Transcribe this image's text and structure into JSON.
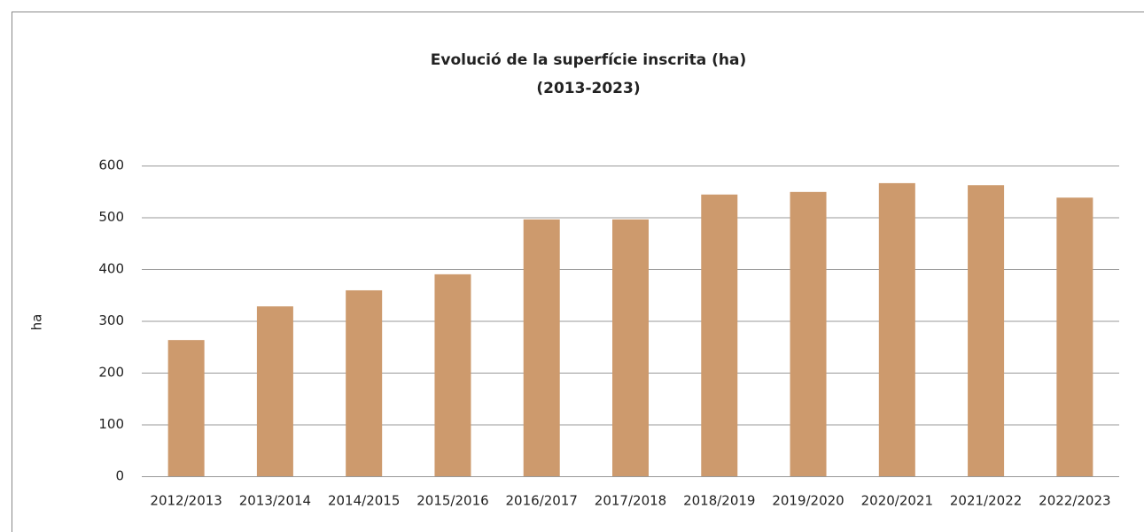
{
  "chart_data": {
    "type": "bar",
    "title": "Evolució de la superfície inscrita (ha)",
    "subtitle": "(2013-2023)",
    "y_label": "ha",
    "categories": [
      "2012/2013",
      "2013/2014",
      "2014/2015",
      "2015/2016",
      "2016/2017",
      "2017/2018",
      "2018/2019",
      "2019/2020",
      "2020/2021",
      "2021/2022",
      "2022/2023"
    ],
    "values": [
      263,
      328,
      359,
      390,
      496,
      496,
      544,
      549,
      566,
      562,
      538
    ],
    "color": "#cd9a6d",
    "ylim": [
      0,
      600
    ],
    "yticks": [
      0,
      100,
      200,
      300,
      400,
      500,
      600
    ],
    "grid": true
  }
}
